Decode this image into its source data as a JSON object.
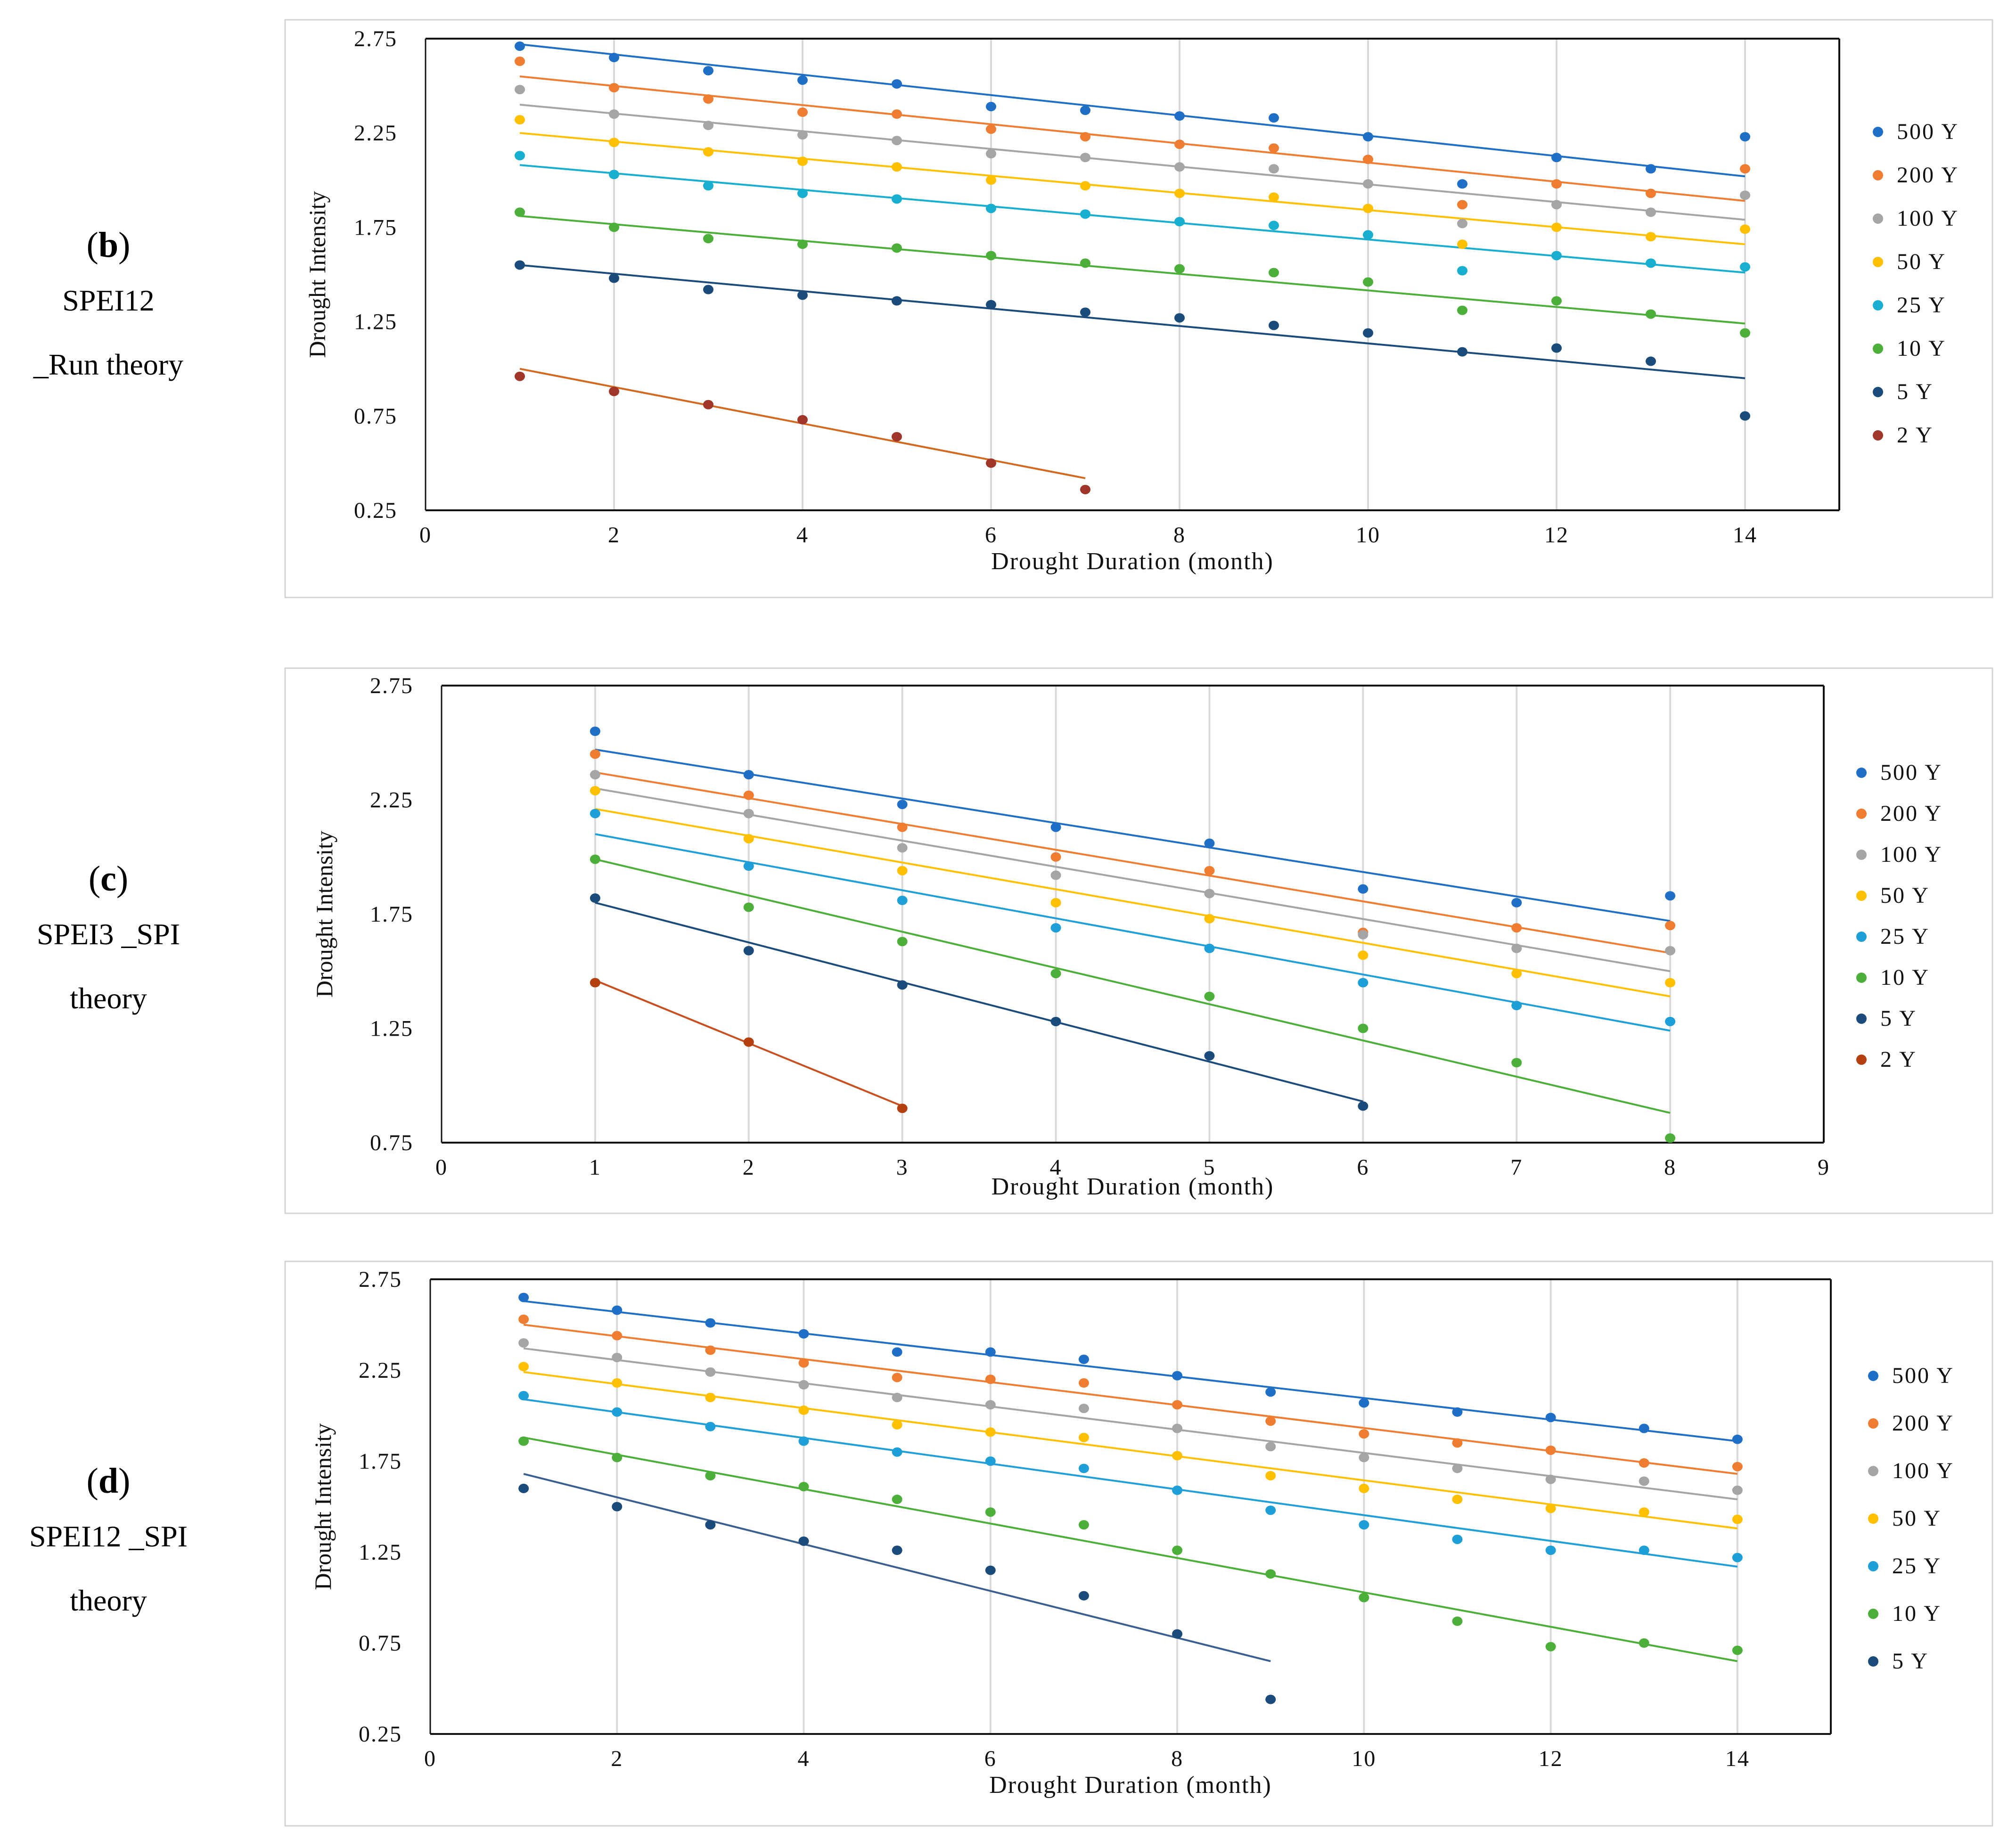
{
  "panels": [
    {
      "letter": "b",
      "lines": [
        "SPEI12",
        "_Run theory"
      ]
    },
    {
      "letter": "c",
      "lines": [
        "SPEI3 _SPI",
        "theory"
      ]
    },
    {
      "letter": "d",
      "lines": [
        "SPEI12 _SPI",
        "theory"
      ]
    }
  ],
  "chart_data": [
    {
      "type": "scatter",
      "title": "",
      "xlabel": "Drought Duration (month)",
      "ylabel": "Drought Intensity",
      "xlim": [
        0,
        15
      ],
      "ylim": [
        0.25,
        2.75
      ],
      "xticks": [
        0,
        2,
        4,
        6,
        8,
        10,
        12,
        14
      ],
      "yticks": [
        0.25,
        0.75,
        1.25,
        1.75,
        2.25,
        2.75
      ],
      "xtick_labels": [
        "0",
        "2",
        "4",
        "6",
        "8",
        "10",
        "12",
        "14"
      ],
      "ytick_labels": [
        "0.25",
        "0.75",
        "1.25",
        "1.75",
        "2.25",
        "2.75"
      ],
      "grid": "vertical",
      "legend": "right",
      "trendline": "linear",
      "series": [
        {
          "name": "500 Y",
          "color": "#1f6fc6",
          "x": [
            1,
            2,
            3,
            4,
            5,
            6,
            7,
            8,
            9,
            10,
            11,
            12,
            13,
            14
          ],
          "y": [
            2.71,
            2.65,
            2.58,
            2.53,
            2.51,
            2.39,
            2.37,
            2.34,
            2.33,
            2.23,
            1.98,
            2.12,
            2.06,
            2.23
          ],
          "fit": [
            2.72,
            2.02
          ]
        },
        {
          "name": "200 Y",
          "color": "#ef7d31",
          "x": [
            1,
            2,
            3,
            4,
            5,
            6,
            7,
            8,
            9,
            10,
            11,
            12,
            13,
            14
          ],
          "y": [
            2.63,
            2.49,
            2.43,
            2.36,
            2.35,
            2.27,
            2.23,
            2.19,
            2.17,
            2.11,
            1.87,
            1.98,
            1.93,
            2.06
          ],
          "fit": [
            2.55,
            1.89
          ]
        },
        {
          "name": "100 Y",
          "color": "#a5a5a5",
          "x": [
            1,
            2,
            3,
            4,
            5,
            6,
            7,
            8,
            9,
            10,
            11,
            12,
            13,
            14
          ],
          "y": [
            2.48,
            2.35,
            2.29,
            2.24,
            2.21,
            2.14,
            2.12,
            2.07,
            2.06,
            1.98,
            1.77,
            1.87,
            1.83,
            1.92
          ],
          "fit": [
            2.4,
            1.79
          ]
        },
        {
          "name": "50 Y",
          "color": "#fec000",
          "x": [
            1,
            2,
            3,
            4,
            5,
            6,
            7,
            8,
            9,
            10,
            11,
            12,
            13,
            14
          ],
          "y": [
            2.32,
            2.2,
            2.15,
            2.1,
            2.07,
            2.0,
            1.97,
            1.93,
            1.91,
            1.85,
            1.66,
            1.75,
            1.7,
            1.74
          ],
          "fit": [
            2.25,
            1.66
          ]
        },
        {
          "name": "25 Y",
          "color": "#18aed0",
          "x": [
            1,
            2,
            3,
            4,
            5,
            6,
            7,
            8,
            9,
            10,
            11,
            12,
            13,
            14
          ],
          "y": [
            2.13,
            2.03,
            1.97,
            1.93,
            1.9,
            1.85,
            1.82,
            1.78,
            1.76,
            1.71,
            1.52,
            1.6,
            1.56,
            1.54
          ],
          "fit": [
            2.08,
            1.51
          ]
        },
        {
          "name": "10 Y",
          "color": "#4caf3a",
          "x": [
            1,
            2,
            3,
            4,
            5,
            6,
            7,
            8,
            9,
            10,
            11,
            12,
            13,
            14
          ],
          "y": [
            1.83,
            1.75,
            1.69,
            1.66,
            1.64,
            1.6,
            1.56,
            1.53,
            1.51,
            1.46,
            1.31,
            1.36,
            1.29,
            1.19
          ],
          "fit": [
            1.81,
            1.24
          ]
        },
        {
          "name": "5 Y",
          "color": "#1b4b7a",
          "x": [
            1,
            2,
            3,
            4,
            5,
            6,
            7,
            8,
            9,
            10,
            11,
            12,
            13,
            14
          ],
          "y": [
            1.55,
            1.48,
            1.42,
            1.39,
            1.36,
            1.34,
            1.3,
            1.27,
            1.23,
            1.19,
            1.09,
            1.11,
            1.04,
            0.75
          ],
          "fit": [
            1.55,
            0.95
          ]
        },
        {
          "name": "2 Y",
          "color": "#a0352a",
          "x": [
            1,
            2,
            3,
            4,
            5,
            6,
            7
          ],
          "y": [
            0.96,
            0.88,
            0.81,
            0.73,
            0.64,
            0.5,
            0.36
          ],
          "fit": [
            1.0,
            0.42
          ],
          "fit_color": "#d2691e"
        }
      ]
    },
    {
      "type": "scatter",
      "title": "",
      "xlabel": "Drought Duration (month)",
      "ylabel": "Drought Intensity",
      "xlim": [
        0,
        9
      ],
      "ylim": [
        0.75,
        2.75
      ],
      "xticks": [
        0,
        1,
        2,
        3,
        4,
        5,
        6,
        7,
        8,
        9
      ],
      "yticks": [
        0.75,
        1.25,
        1.75,
        2.25,
        2.75
      ],
      "xtick_labels": [
        "0",
        "1",
        "2",
        "3",
        "4",
        "5",
        "6",
        "7",
        "8",
        "9"
      ],
      "ytick_labels": [
        "0.75",
        "1.25",
        "1.75",
        "2.25",
        "2.75"
      ],
      "grid": "vertical",
      "legend": "right",
      "trendline": "linear",
      "series": [
        {
          "name": "500 Y",
          "color": "#1f6fc6",
          "x": [
            1,
            2,
            3,
            4,
            5,
            6,
            7,
            8
          ],
          "y": [
            2.55,
            2.36,
            2.23,
            2.13,
            2.06,
            1.86,
            1.8,
            1.83
          ],
          "fit": [
            2.47,
            1.72
          ]
        },
        {
          "name": "200 Y",
          "color": "#ef7d31",
          "x": [
            1,
            2,
            3,
            4,
            5,
            6,
            7,
            8
          ],
          "y": [
            2.45,
            2.27,
            2.13,
            2.0,
            1.94,
            1.67,
            1.69,
            1.7
          ],
          "fit": [
            2.37,
            1.58
          ]
        },
        {
          "name": "100 Y",
          "color": "#a5a5a5",
          "x": [
            1,
            2,
            3,
            4,
            5,
            6,
            7,
            8
          ],
          "y": [
            2.36,
            2.19,
            2.04,
            1.92,
            1.84,
            1.66,
            1.6,
            1.59
          ],
          "fit": [
            2.3,
            1.5
          ]
        },
        {
          "name": "50 Y",
          "color": "#fec000",
          "x": [
            1,
            2,
            3,
            4,
            5,
            6,
            7,
            8
          ],
          "y": [
            2.29,
            2.08,
            1.94,
            1.8,
            1.73,
            1.57,
            1.49,
            1.45
          ],
          "fit": [
            2.21,
            1.39
          ]
        },
        {
          "name": "25 Y",
          "color": "#1f9fd8",
          "x": [
            1,
            2,
            3,
            4,
            5,
            6,
            7,
            8
          ],
          "y": [
            2.19,
            1.96,
            1.81,
            1.69,
            1.6,
            1.45,
            1.35,
            1.28
          ],
          "fit": [
            2.1,
            1.24
          ]
        },
        {
          "name": "10 Y",
          "color": "#4caf3a",
          "x": [
            1,
            2,
            3,
            4,
            5,
            6,
            7,
            8
          ],
          "y": [
            1.99,
            1.78,
            1.63,
            1.49,
            1.39,
            1.25,
            1.1,
            0.77
          ],
          "fit": [
            1.99,
            0.88
          ]
        },
        {
          "name": "5 Y",
          "color": "#1b4b7a",
          "x": [
            1,
            2,
            3,
            4,
            5,
            6
          ],
          "y": [
            1.82,
            1.59,
            1.44,
            1.28,
            1.13,
            0.91
          ],
          "fit": [
            1.8,
            0.93
          ]
        },
        {
          "name": "2 Y",
          "color": "#b5400f",
          "x": [
            1,
            2,
            3
          ],
          "y": [
            1.45,
            1.19,
            0.9
          ],
          "fit": [
            1.46,
            0.91
          ],
          "fit_color": "#c85020"
        }
      ]
    },
    {
      "type": "scatter",
      "title": "",
      "xlabel": "Drought Duration (month)",
      "ylabel": "Drought Intensity",
      "xlim": [
        0,
        15
      ],
      "ylim": [
        0.25,
        2.75
      ],
      "xticks": [
        0,
        2,
        4,
        6,
        8,
        10,
        12,
        14
      ],
      "yticks": [
        0.25,
        0.75,
        1.25,
        1.75,
        2.25,
        2.75
      ],
      "xtick_labels": [
        "0",
        "2",
        "4",
        "6",
        "8",
        "10",
        "12",
        "14"
      ],
      "ytick_labels": [
        "0.25",
        "0.75",
        "1.25",
        "1.75",
        "2.25",
        "2.75"
      ],
      "grid": "vertical",
      "legend": "right",
      "trendline": "linear",
      "series": [
        {
          "name": "500 Y",
          "color": "#1f6fc6",
          "x": [
            1,
            2,
            3,
            4,
            5,
            6,
            7,
            8,
            9,
            10,
            11,
            12,
            13,
            14
          ],
          "y": [
            2.65,
            2.58,
            2.51,
            2.45,
            2.35,
            2.35,
            2.31,
            2.22,
            2.13,
            2.07,
            2.02,
            1.99,
            1.93,
            1.87
          ],
          "fit": [
            2.63,
            1.86
          ]
        },
        {
          "name": "200 Y",
          "color": "#ef7d31",
          "x": [
            1,
            2,
            3,
            4,
            5,
            6,
            7,
            8,
            9,
            10,
            11,
            12,
            13,
            14
          ],
          "y": [
            2.53,
            2.44,
            2.36,
            2.29,
            2.21,
            2.2,
            2.18,
            2.06,
            1.97,
            1.9,
            1.85,
            1.81,
            1.74,
            1.72
          ],
          "fit": [
            2.5,
            1.68
          ]
        },
        {
          "name": "100 Y",
          "color": "#a5a5a5",
          "x": [
            1,
            2,
            3,
            4,
            5,
            6,
            7,
            8,
            9,
            10,
            11,
            12,
            13,
            14
          ],
          "y": [
            2.4,
            2.32,
            2.24,
            2.17,
            2.1,
            2.06,
            2.04,
            1.93,
            1.83,
            1.77,
            1.71,
            1.65,
            1.64,
            1.59
          ],
          "fit": [
            2.37,
            1.54
          ]
        },
        {
          "name": "50 Y",
          "color": "#fec000",
          "x": [
            1,
            2,
            3,
            4,
            5,
            6,
            7,
            8,
            9,
            10,
            11,
            12,
            13,
            14
          ],
          "y": [
            2.27,
            2.18,
            2.1,
            2.03,
            1.95,
            1.91,
            1.88,
            1.78,
            1.67,
            1.6,
            1.54,
            1.49,
            1.47,
            1.43
          ],
          "fit": [
            2.24,
            1.38
          ]
        },
        {
          "name": "25 Y",
          "color": "#1f9fd8",
          "x": [
            1,
            2,
            3,
            4,
            5,
            6,
            7,
            8,
            9,
            10,
            11,
            12,
            13,
            14
          ],
          "y": [
            2.11,
            2.02,
            1.94,
            1.86,
            1.8,
            1.75,
            1.71,
            1.59,
            1.48,
            1.4,
            1.32,
            1.26,
            1.26,
            1.22
          ],
          "fit": [
            2.09,
            1.17
          ]
        },
        {
          "name": "10 Y",
          "color": "#4caf3a",
          "x": [
            1,
            2,
            3,
            4,
            5,
            6,
            7,
            8,
            9,
            10,
            11,
            12,
            13,
            14
          ],
          "y": [
            1.86,
            1.77,
            1.67,
            1.61,
            1.54,
            1.47,
            1.4,
            1.26,
            1.13,
            1.0,
            0.87,
            0.73,
            0.75,
            0.71
          ],
          "fit": [
            1.88,
            0.65
          ]
        },
        {
          "name": "5 Y",
          "color": "#1b4b7a",
          "x": [
            1,
            2,
            3,
            4,
            5,
            6,
            7,
            8,
            9
          ],
          "y": [
            1.6,
            1.5,
            1.4,
            1.31,
            1.26,
            1.15,
            1.01,
            0.8,
            0.44
          ],
          "fit": [
            1.68,
            0.65
          ],
          "fit_color": "#3a5f8f"
        }
      ]
    }
  ]
}
